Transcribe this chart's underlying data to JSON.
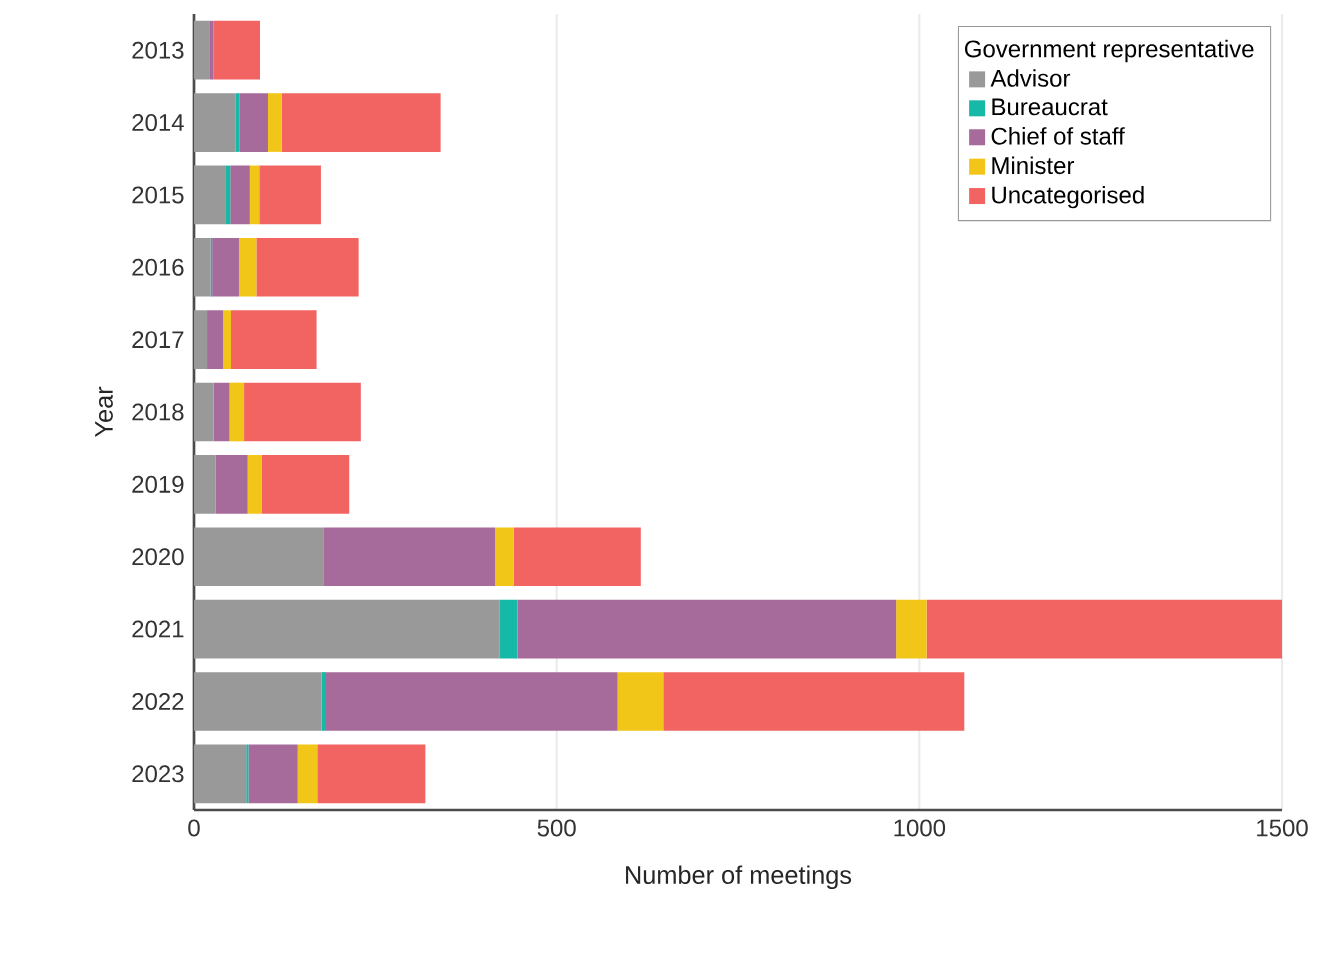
{
  "chart_data": {
    "type": "bar",
    "orientation": "horizontal",
    "stacked": true,
    "xlabel": "Number of meetings",
    "ylabel": "Year",
    "legend_title": "Government representative",
    "legend": "top right",
    "grid": "x",
    "categories": [
      "2013",
      "2014",
      "2015",
      "2016",
      "2017",
      "2018",
      "2019",
      "2020",
      "2021",
      "2022",
      "2023"
    ],
    "xlim": [
      0,
      1500
    ],
    "xticks": [
      0,
      500,
      1000,
      1500
    ],
    "series": [
      {
        "name": "Advisor",
        "color": "#999999",
        "values": [
          22,
          57,
          43,
          23,
          18,
          27,
          30,
          178,
          421,
          176,
          72
        ]
      },
      {
        "name": "Bureaucrat",
        "color": "#16b8a6",
        "values": [
          0,
          6,
          7,
          2,
          0,
          0,
          0,
          1,
          25,
          6,
          3
        ]
      },
      {
        "name": "Chief of staff",
        "color": "#a66b9a",
        "values": [
          5,
          39,
          27,
          37,
          22,
          22,
          44,
          236,
          522,
          402,
          68
        ]
      },
      {
        "name": "Minister",
        "color": "#f2c618",
        "values": [
          0,
          19,
          13,
          24,
          11,
          20,
          19,
          26,
          42,
          63,
          27
        ]
      },
      {
        "name": "Uncategorised",
        "color": "#f26462",
        "values": [
          64,
          219,
          85,
          141,
          118,
          161,
          121,
          175,
          490,
          415,
          149
        ]
      }
    ]
  }
}
